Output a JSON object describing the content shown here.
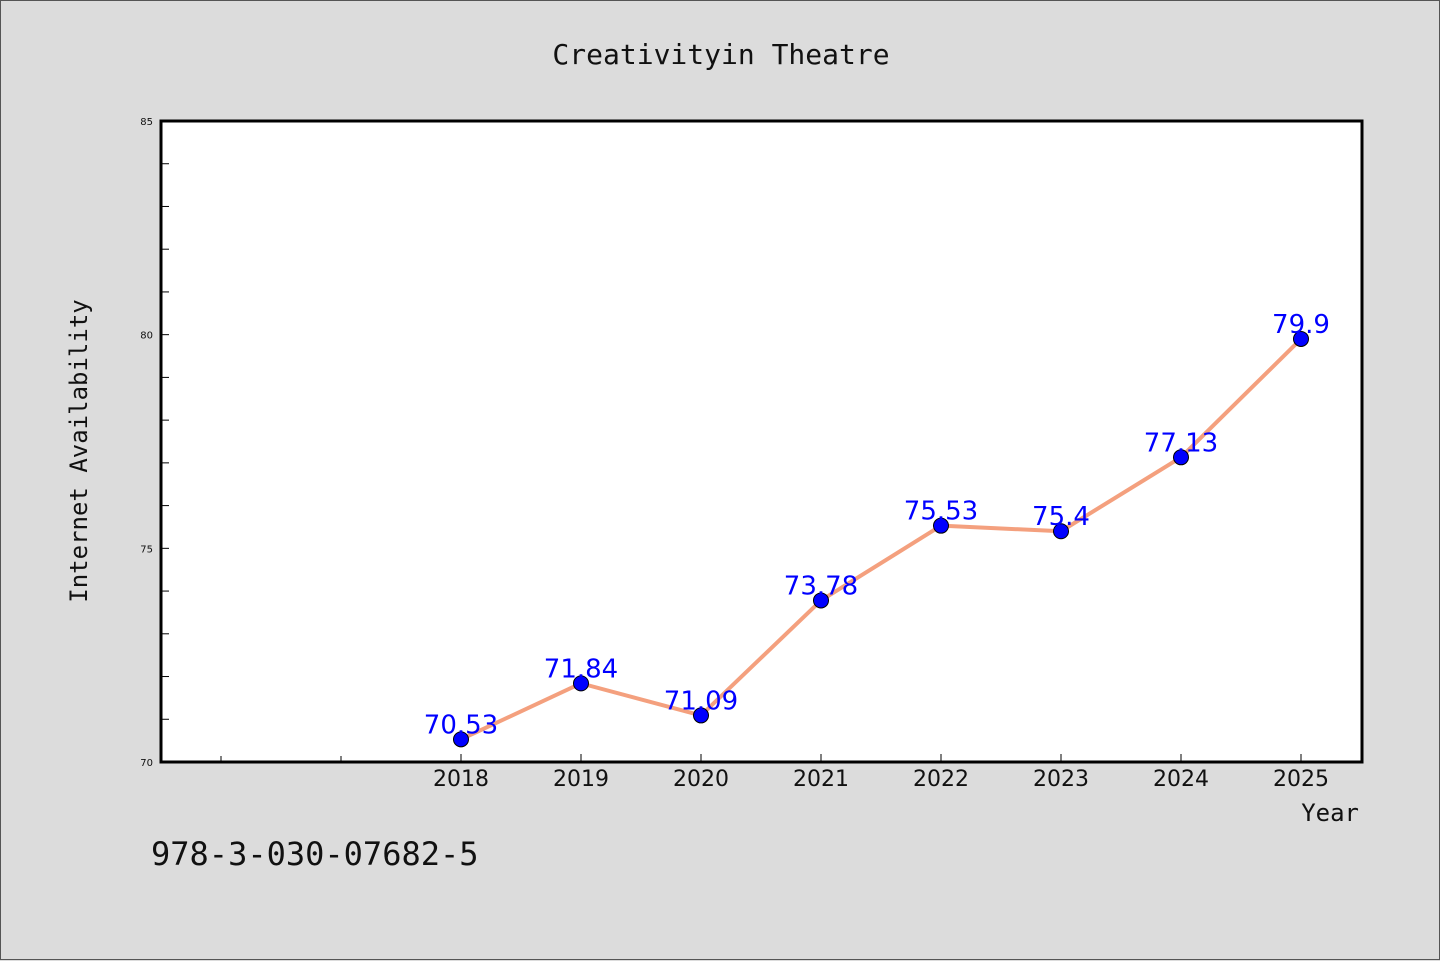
{
  "chart_data": {
    "type": "line",
    "title": "Creativityin Theatre",
    "xlabel": "Year",
    "ylabel": "Internet Availability",
    "categories": [
      "2018",
      "2019",
      "2020",
      "2021",
      "2022",
      "2023",
      "2024",
      "2025"
    ],
    "values": [
      70.53,
      71.84,
      71.09,
      73.78,
      75.53,
      75.4,
      77.13,
      79.9
    ],
    "data_labels": [
      "70.53",
      "71.84",
      "71.09",
      "73.78",
      "75.53",
      "75.4",
      "77.13",
      "79.9"
    ],
    "ylim": [
      70,
      85
    ],
    "y_ticks": [
      "70",
      "75",
      "80",
      "85"
    ],
    "grid": false,
    "colors": {
      "line": "#f4a07e",
      "marker": "#0000ff",
      "label": "#0000ff",
      "background": "#dcdcdc",
      "plot_background": "#ffffff"
    }
  },
  "footer": {
    "isbn": "978-3-030-07682-5"
  }
}
